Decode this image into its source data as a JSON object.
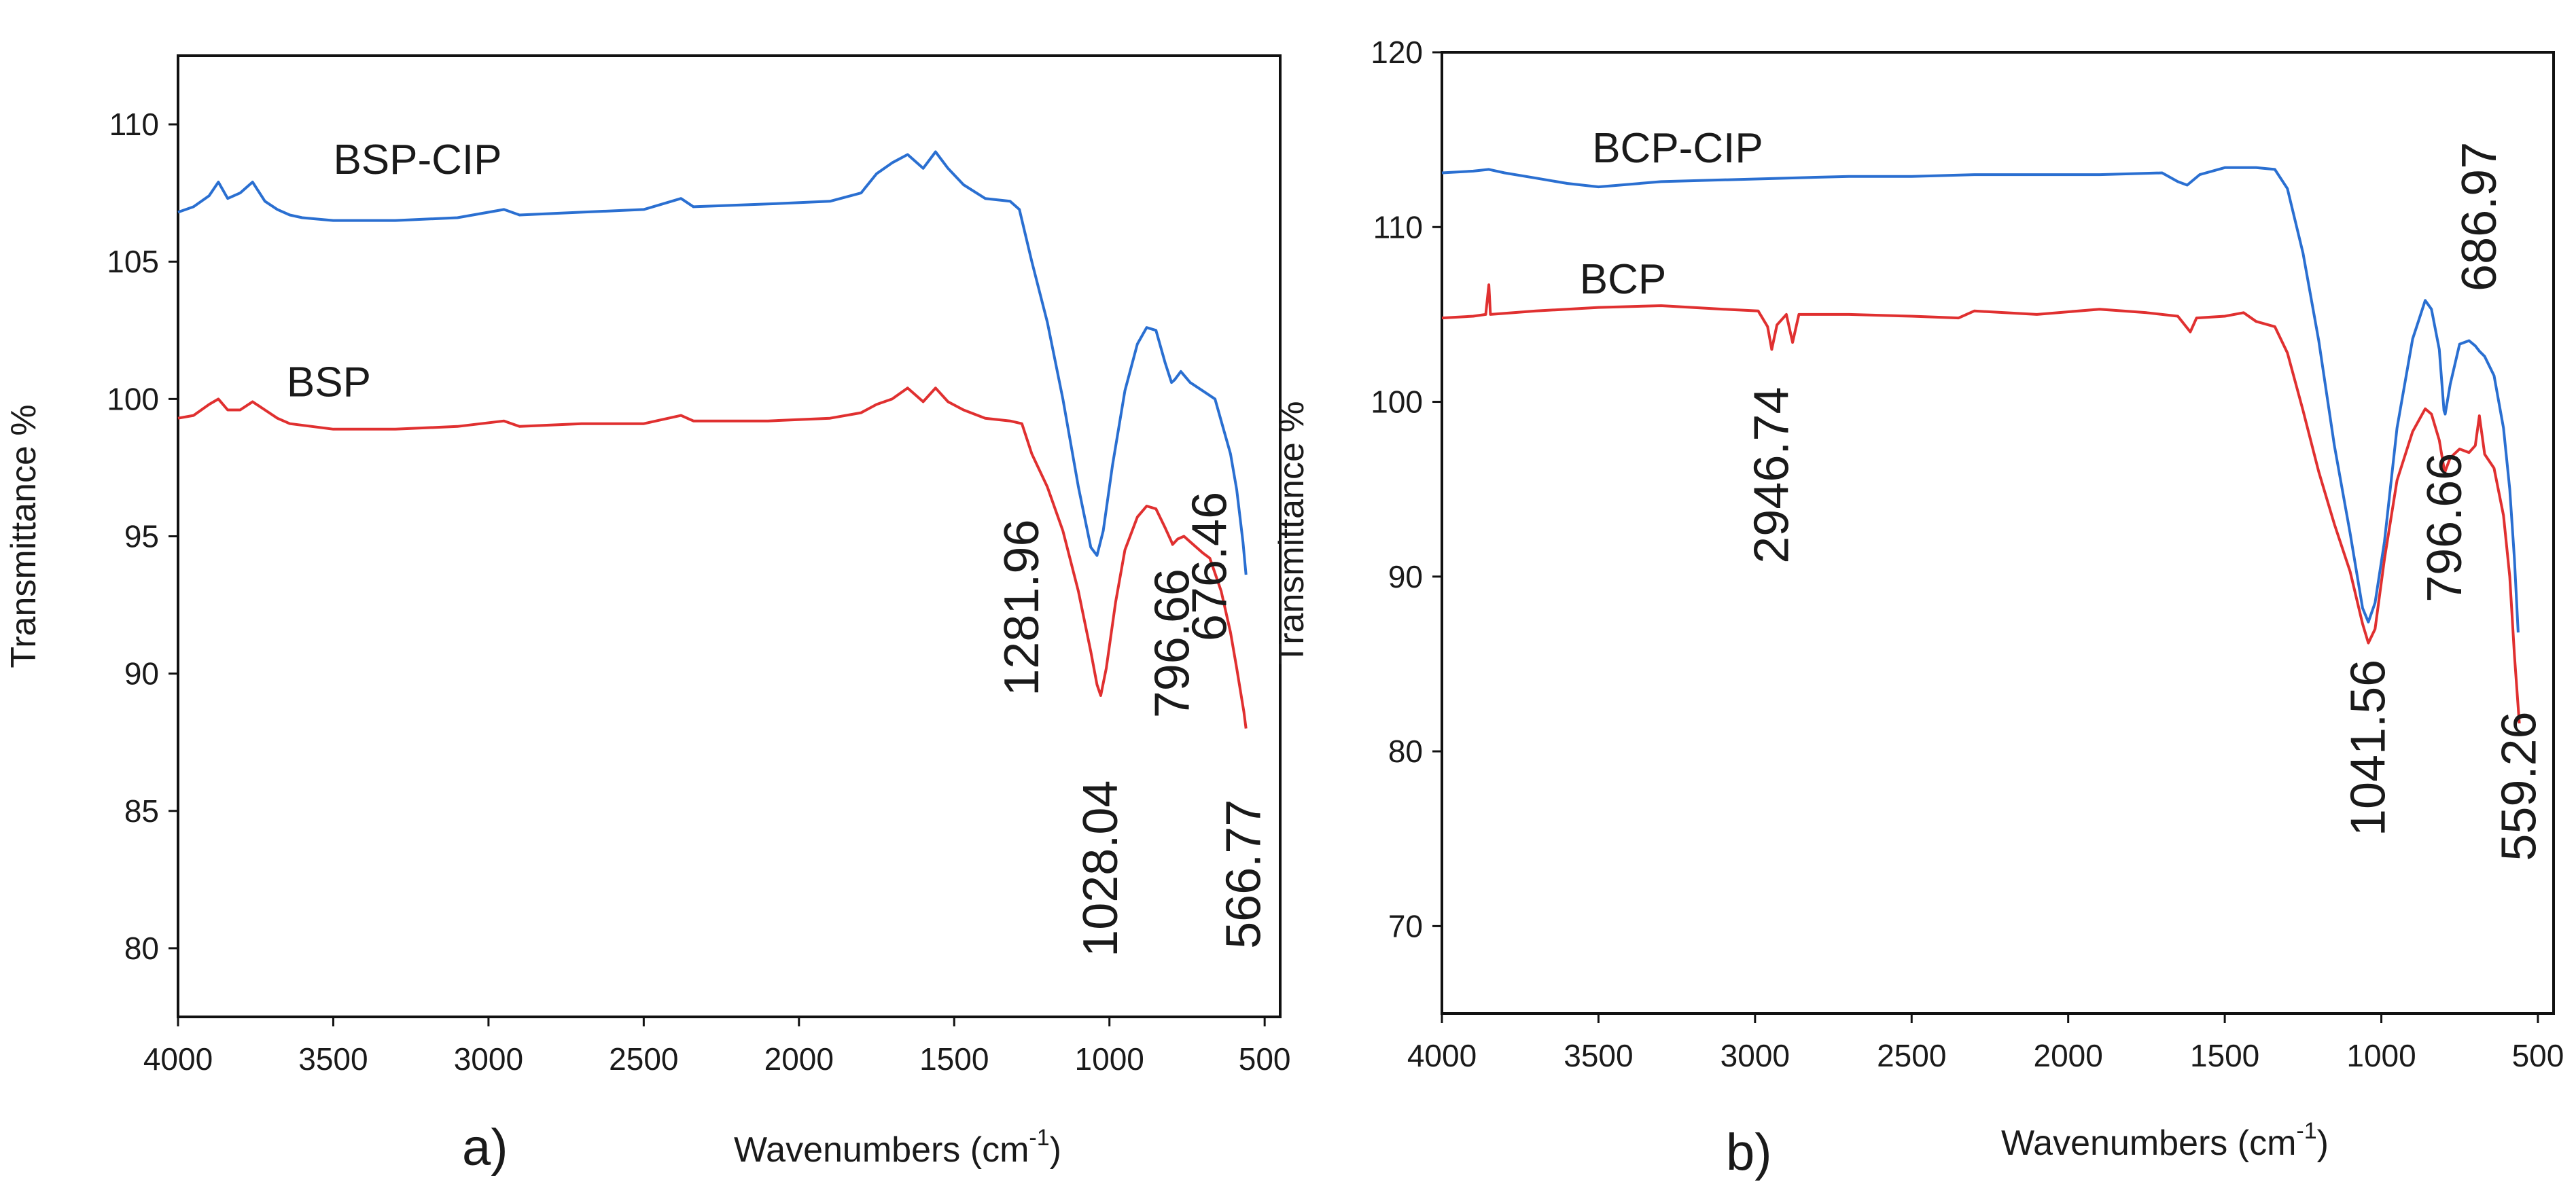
{
  "chart_data": [
    {
      "type": "line",
      "panel_letter": "a)",
      "xlabel": "Wavenumbers (cm",
      "xlabel_superscript": "-1",
      "xlabel_close": ")",
      "ylabel": "Transmittance %",
      "xlim": [
        4000,
        450
      ],
      "ylim": [
        77.5,
        112.5
      ],
      "x_ticks": [
        4000,
        3500,
        3000,
        2500,
        2000,
        1500,
        1000,
        500
      ],
      "y_ticks": [
        80,
        85,
        90,
        95,
        100,
        105,
        110
      ],
      "series": [
        {
          "name": "BSP-CIP",
          "color": "#2a6fd1",
          "points": [
            [
              4000,
              106.8
            ],
            [
              3950,
              107.0
            ],
            [
              3900,
              107.4
            ],
            [
              3870,
              107.9
            ],
            [
              3840,
              107.3
            ],
            [
              3800,
              107.5
            ],
            [
              3760,
              107.9
            ],
            [
              3720,
              107.2
            ],
            [
              3680,
              106.9
            ],
            [
              3640,
              106.7
            ],
            [
              3600,
              106.6
            ],
            [
              3500,
              106.5
            ],
            [
              3300,
              106.5
            ],
            [
              3100,
              106.6
            ],
            [
              2950,
              106.9
            ],
            [
              2900,
              106.7
            ],
            [
              2700,
              106.8
            ],
            [
              2500,
              106.9
            ],
            [
              2380,
              107.3
            ],
            [
              2340,
              107.0
            ],
            [
              2100,
              107.1
            ],
            [
              1900,
              107.2
            ],
            [
              1800,
              107.5
            ],
            [
              1750,
              108.2
            ],
            [
              1700,
              108.6
            ],
            [
              1650,
              108.9
            ],
            [
              1600,
              108.4
            ],
            [
              1560,
              109.0
            ],
            [
              1520,
              108.4
            ],
            [
              1470,
              107.8
            ],
            [
              1400,
              107.3
            ],
            [
              1320,
              107.2
            ],
            [
              1290,
              106.9
            ],
            [
              1250,
              105.0
            ],
            [
              1200,
              102.8
            ],
            [
              1150,
              100.0
            ],
            [
              1100,
              96.8
            ],
            [
              1060,
              94.6
            ],
            [
              1040,
              94.3
            ],
            [
              1020,
              95.2
            ],
            [
              990,
              97.6
            ],
            [
              950,
              100.3
            ],
            [
              910,
              102.0
            ],
            [
              880,
              102.6
            ],
            [
              850,
              102.5
            ],
            [
              820,
              101.3
            ],
            [
              800,
              100.6
            ],
            [
              790,
              100.7
            ],
            [
              770,
              101.0
            ],
            [
              740,
              100.6
            ],
            [
              700,
              100.3
            ],
            [
              660,
              100.0
            ],
            [
              640,
              99.2
            ],
            [
              610,
              98.0
            ],
            [
              590,
              96.7
            ],
            [
              570,
              94.8
            ],
            [
              560,
              93.6
            ]
          ]
        },
        {
          "name": "BSP",
          "color": "#e03030",
          "points": [
            [
              4000,
              99.3
            ],
            [
              3950,
              99.4
            ],
            [
              3900,
              99.8
            ],
            [
              3870,
              100.0
            ],
            [
              3840,
              99.6
            ],
            [
              3800,
              99.6
            ],
            [
              3760,
              99.9
            ],
            [
              3720,
              99.6
            ],
            [
              3680,
              99.3
            ],
            [
              3640,
              99.1
            ],
            [
              3500,
              98.9
            ],
            [
              3300,
              98.9
            ],
            [
              3100,
              99.0
            ],
            [
              2950,
              99.2
            ],
            [
              2900,
              99.0
            ],
            [
              2700,
              99.1
            ],
            [
              2500,
              99.1
            ],
            [
              2380,
              99.4
            ],
            [
              2340,
              99.2
            ],
            [
              2100,
              99.2
            ],
            [
              1900,
              99.3
            ],
            [
              1800,
              99.5
            ],
            [
              1750,
              99.8
            ],
            [
              1700,
              100.0
            ],
            [
              1650,
              100.4
            ],
            [
              1600,
              99.9
            ],
            [
              1560,
              100.4
            ],
            [
              1520,
              99.9
            ],
            [
              1470,
              99.6
            ],
            [
              1400,
              99.3
            ],
            [
              1320,
              99.2
            ],
            [
              1281.96,
              99.1
            ],
            [
              1250,
              98.0
            ],
            [
              1200,
              96.8
            ],
            [
              1150,
              95.2
            ],
            [
              1100,
              93.0
            ],
            [
              1060,
              90.8
            ],
            [
              1040,
              89.6
            ],
            [
              1028.04,
              89.2
            ],
            [
              1010,
              90.2
            ],
            [
              980,
              92.6
            ],
            [
              950,
              94.5
            ],
            [
              910,
              95.7
            ],
            [
              880,
              96.1
            ],
            [
              850,
              96.0
            ],
            [
              820,
              95.3
            ],
            [
              800,
              94.8
            ],
            [
              796.66,
              94.7
            ],
            [
              780,
              94.9
            ],
            [
              760,
              95.0
            ],
            [
              740,
              94.8
            ],
            [
              700,
              94.4
            ],
            [
              676.46,
              94.2
            ],
            [
              640,
              93.0
            ],
            [
              610,
              91.5
            ],
            [
              590,
              90.2
            ],
            [
              566.77,
              88.6
            ],
            [
              560,
              88.0
            ]
          ]
        }
      ],
      "series_labels": [
        {
          "text": "BSP-CIP",
          "x": 3500,
          "y": 108.2
        },
        {
          "text": "BSP",
          "x": 3650,
          "y": 100.1
        }
      ],
      "annotations": [
        {
          "text": "1281.96",
          "x": 1281.96,
          "y": 92.4
        },
        {
          "text": "1028.04",
          "x": 1028.04,
          "y": 82.9
        },
        {
          "text": "796.66",
          "x": 796.66,
          "y": 91.1
        },
        {
          "text": "676.46",
          "x": 676.46,
          "y": 93.9
        },
        {
          "text": "566.77",
          "x": 566.77,
          "y": 82.7
        }
      ]
    },
    {
      "type": "line",
      "panel_letter": "b)",
      "xlabel": "Wavenumbers (cm",
      "xlabel_superscript": "-1",
      "xlabel_close": ")",
      "ylabel": "Transmittance %",
      "xlim": [
        4000,
        450
      ],
      "ylim": [
        65,
        120
      ],
      "x_ticks": [
        4000,
        3500,
        3000,
        2500,
        2000,
        1500,
        1000,
        500
      ],
      "y_ticks": [
        70,
        80,
        90,
        100,
        110,
        120
      ],
      "series": [
        {
          "name": "BCP-CIP",
          "color": "#2a6fd1",
          "points": [
            [
              4000,
              113.1
            ],
            [
              3900,
              113.2
            ],
            [
              3850,
              113.3
            ],
            [
              3800,
              113.1
            ],
            [
              3700,
              112.8
            ],
            [
              3600,
              112.5
            ],
            [
              3500,
              112.3
            ],
            [
              3300,
              112.6
            ],
            [
              3100,
              112.7
            ],
            [
              2900,
              112.8
            ],
            [
              2700,
              112.9
            ],
            [
              2500,
              112.9
            ],
            [
              2300,
              113.0
            ],
            [
              2100,
              113.0
            ],
            [
              1900,
              113.0
            ],
            [
              1700,
              113.1
            ],
            [
              1650,
              112.6
            ],
            [
              1620,
              112.4
            ],
            [
              1580,
              113.0
            ],
            [
              1500,
              113.4
            ],
            [
              1400,
              113.4
            ],
            [
              1340,
              113.3
            ],
            [
              1300,
              112.2
            ],
            [
              1250,
              108.5
            ],
            [
              1200,
              103.5
            ],
            [
              1150,
              97.5
            ],
            [
              1100,
              92.5
            ],
            [
              1060,
              88.2
            ],
            [
              1041.56,
              87.4
            ],
            [
              1020,
              88.5
            ],
            [
              990,
              92.0
            ],
            [
              950,
              98.5
            ],
            [
              900,
              103.6
            ],
            [
              860,
              105.8
            ],
            [
              840,
              105.3
            ],
            [
              815,
              103.0
            ],
            [
              800,
              99.5
            ],
            [
              796,
              99.3
            ],
            [
              780,
              101.0
            ],
            [
              750,
              103.3
            ],
            [
              720,
              103.5
            ],
            [
              700,
              103.2
            ],
            [
              686.97,
              102.9
            ],
            [
              670,
              102.6
            ],
            [
              640,
              101.5
            ],
            [
              610,
              98.5
            ],
            [
              590,
              95.0
            ],
            [
              575,
              91.0
            ],
            [
              563,
              86.8
            ]
          ]
        },
        {
          "name": "BCP",
          "color": "#e03030",
          "points": [
            [
              4000,
              104.8
            ],
            [
              3900,
              104.9
            ],
            [
              3860,
              105.0
            ],
            [
              3850,
              106.7
            ],
            [
              3845,
              105.0
            ],
            [
              3700,
              105.2
            ],
            [
              3500,
              105.4
            ],
            [
              3300,
              105.5
            ],
            [
              3100,
              105.3
            ],
            [
              2990,
              105.2
            ],
            [
              2960,
              104.3
            ],
            [
              2946.74,
              103.0
            ],
            [
              2930,
              104.4
            ],
            [
              2900,
              105.0
            ],
            [
              2880,
              103.4
            ],
            [
              2860,
              105.0
            ],
            [
              2700,
              105.0
            ],
            [
              2500,
              104.9
            ],
            [
              2350,
              104.8
            ],
            [
              2300,
              105.2
            ],
            [
              2100,
              105.0
            ],
            [
              1900,
              105.3
            ],
            [
              1750,
              105.1
            ],
            [
              1650,
              104.9
            ],
            [
              1610,
              104.0
            ],
            [
              1590,
              104.8
            ],
            [
              1500,
              104.9
            ],
            [
              1440,
              105.1
            ],
            [
              1400,
              104.6
            ],
            [
              1340,
              104.3
            ],
            [
              1300,
              102.8
            ],
            [
              1250,
              99.5
            ],
            [
              1200,
              96.0
            ],
            [
              1150,
              93.0
            ],
            [
              1100,
              90.3
            ],
            [
              1060,
              87.3
            ],
            [
              1041.56,
              86.2
            ],
            [
              1020,
              87.0
            ],
            [
              990,
              91.0
            ],
            [
              950,
              95.5
            ],
            [
              900,
              98.3
            ],
            [
              860,
              99.6
            ],
            [
              840,
              99.3
            ],
            [
              815,
              97.8
            ],
            [
              800,
              96.2
            ],
            [
              796.66,
              96.0
            ],
            [
              780,
              96.8
            ],
            [
              750,
              97.3
            ],
            [
              720,
              97.1
            ],
            [
              700,
              97.5
            ],
            [
              686.97,
              99.2
            ],
            [
              670,
              97.0
            ],
            [
              640,
              96.2
            ],
            [
              610,
              93.5
            ],
            [
              590,
              90.0
            ],
            [
              575,
              85.5
            ],
            [
              559.26,
              81.6
            ]
          ]
        }
      ],
      "series_labels": [
        {
          "text": "BCP-CIP",
          "x": 3520,
          "y": 113.7
        },
        {
          "text": "BCP",
          "x": 3560,
          "y": 106.2
        }
      ],
      "annotations": [
        {
          "text": "2946.74",
          "x": 2946.74,
          "y": 95.8
        },
        {
          "text": "1041.56",
          "x": 1041.56,
          "y": 80.2
        },
        {
          "text": "796.66",
          "x": 796.66,
          "y": 92.8
        },
        {
          "text": "686.97",
          "x": 686.97,
          "y": 110.6
        },
        {
          "text": "559.26",
          "x": 559.26,
          "y": 78.0
        }
      ]
    }
  ]
}
